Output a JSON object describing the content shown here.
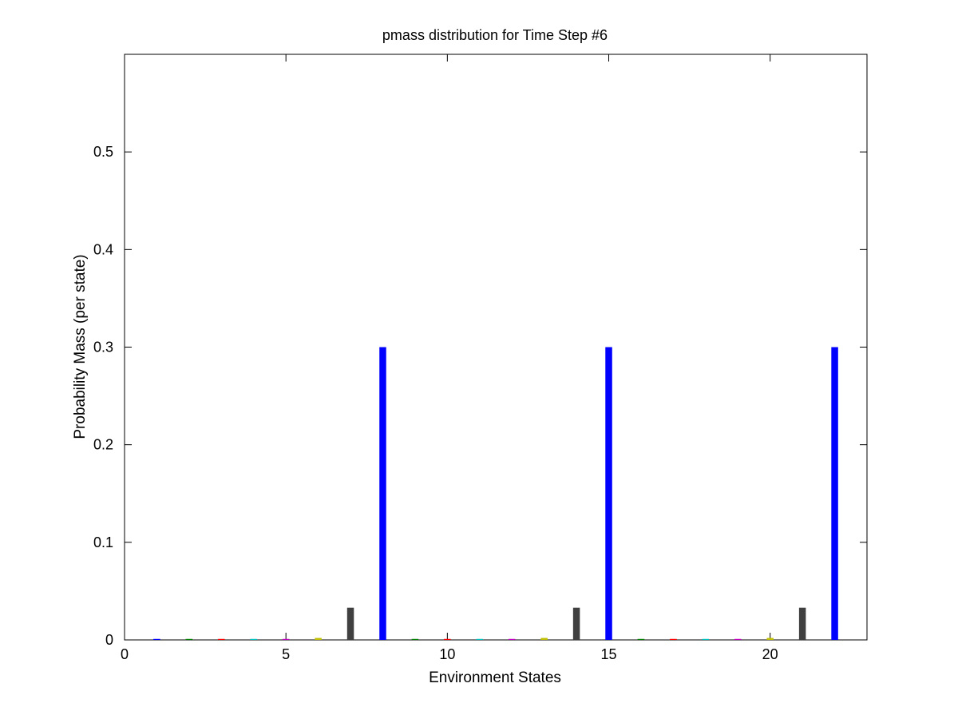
{
  "chart_data": {
    "type": "bar",
    "title": "pmass distribution for Time Step #6",
    "xlabel": "Environment States",
    "ylabel": "Probability Mass (per state)",
    "xlim": [
      0,
      23
    ],
    "ylim": [
      0,
      0.6
    ],
    "xticks": [
      0,
      5,
      10,
      15,
      20
    ],
    "yticks": [
      0,
      0.1,
      0.2,
      0.3,
      0.4,
      0.5
    ],
    "ytick_labels": [
      "0",
      "0.1",
      "0.2",
      "0.3",
      "0.4",
      "0.5"
    ],
    "grid": false,
    "box": true,
    "categories": [
      1,
      2,
      3,
      4,
      5,
      6,
      7,
      8,
      9,
      10,
      11,
      12,
      13,
      14,
      15,
      16,
      17,
      18,
      19,
      20,
      21,
      22
    ],
    "values": [
      0.001,
      0.001,
      0.001,
      0.001,
      0.001,
      0.002,
      0.033,
      0.3,
      0.001,
      0.001,
      0.001,
      0.001,
      0.002,
      0.033,
      0.3,
      0.001,
      0.001,
      0.001,
      0.001,
      0.002,
      0.033,
      0.3
    ],
    "colors": [
      "#0000ff",
      "#008000",
      "#ff0000",
      "#00bfbf",
      "#bf00bf",
      "#bfbf00",
      "#404040",
      "#0000ff",
      "#008000",
      "#ff0000",
      "#00bfbf",
      "#bf00bf",
      "#bfbf00",
      "#404040",
      "#0000ff",
      "#008000",
      "#ff0000",
      "#00bfbf",
      "#bf00bf",
      "#bfbf00",
      "#404040",
      "#0000ff"
    ]
  }
}
